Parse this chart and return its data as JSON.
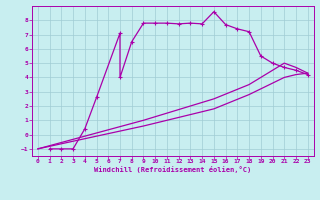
{
  "xlabel": "Windchill (Refroidissement éolien,°C)",
  "bg_color": "#c8eef0",
  "grid_color": "#a0ccd4",
  "line_color": "#aa00aa",
  "xlim": [
    -0.5,
    23.5
  ],
  "ylim": [
    -1.5,
    9.0
  ],
  "xticks": [
    0,
    1,
    2,
    3,
    4,
    5,
    6,
    7,
    8,
    9,
    10,
    11,
    12,
    13,
    14,
    15,
    16,
    17,
    18,
    19,
    20,
    21,
    22,
    23
  ],
  "yticks": [
    -1,
    0,
    1,
    2,
    3,
    4,
    5,
    6,
    7,
    8
  ],
  "line1_x": [
    1,
    2,
    3,
    4,
    5,
    7,
    7,
    8,
    9,
    10,
    11,
    12,
    13,
    14,
    15,
    16,
    17,
    18,
    19,
    20,
    21,
    22,
    23
  ],
  "line1_y": [
    -1,
    -1,
    -1,
    0.4,
    2.6,
    7.1,
    4.0,
    6.5,
    7.8,
    7.8,
    7.8,
    7.75,
    7.8,
    7.75,
    8.6,
    7.7,
    7.4,
    7.2,
    5.5,
    5.0,
    4.7,
    4.5,
    4.2
  ],
  "line2_x": [
    0,
    9,
    15,
    18,
    20,
    21,
    22,
    23
  ],
  "line2_y": [
    -1,
    1.0,
    2.5,
    3.5,
    4.5,
    5.0,
    4.7,
    4.3
  ],
  "line3_x": [
    0,
    9,
    15,
    18,
    20,
    21,
    22,
    23
  ],
  "line3_y": [
    -1,
    0.6,
    1.8,
    2.8,
    3.6,
    4.0,
    4.2,
    4.3
  ]
}
